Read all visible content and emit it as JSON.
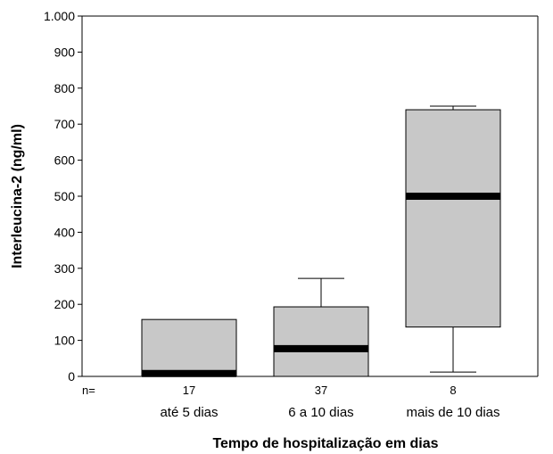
{
  "chart_data": {
    "type": "boxplot",
    "title": "",
    "xlabel": "Tempo de hospitalização em dias",
    "ylabel": "Interleucina-2 (ng/ml)",
    "ylim": [
      0,
      1000
    ],
    "yticks": [
      {
        "value": 0,
        "label": "0"
      },
      {
        "value": 100,
        "label": "100"
      },
      {
        "value": 200,
        "label": "200"
      },
      {
        "value": 300,
        "label": "300"
      },
      {
        "value": 400,
        "label": "400"
      },
      {
        "value": 500,
        "label": "500"
      },
      {
        "value": 600,
        "label": "600"
      },
      {
        "value": 700,
        "label": "700"
      },
      {
        "value": 800,
        "label": "800"
      },
      {
        "value": 900,
        "label": "900"
      },
      {
        "value": 1000,
        "label": "1.000"
      }
    ],
    "n_prefix": "n=",
    "grid": false,
    "box_fill": "#c8c8c8",
    "median_color": "#000000",
    "categories": [
      "até 5 dias",
      "6 a 10 dias",
      "mais de 10 dias"
    ],
    "n": [
      "17",
      "37",
      "8"
    ],
    "boxes": [
      {
        "min": 0,
        "q1": 0,
        "median": 8,
        "q3": 158,
        "max": 158
      },
      {
        "min": 0,
        "q1": 0,
        "median": 77,
        "q3": 193,
        "max": 272
      },
      {
        "min": 12,
        "q1": 137,
        "median": 500,
        "q3": 740,
        "max": 750
      }
    ]
  }
}
